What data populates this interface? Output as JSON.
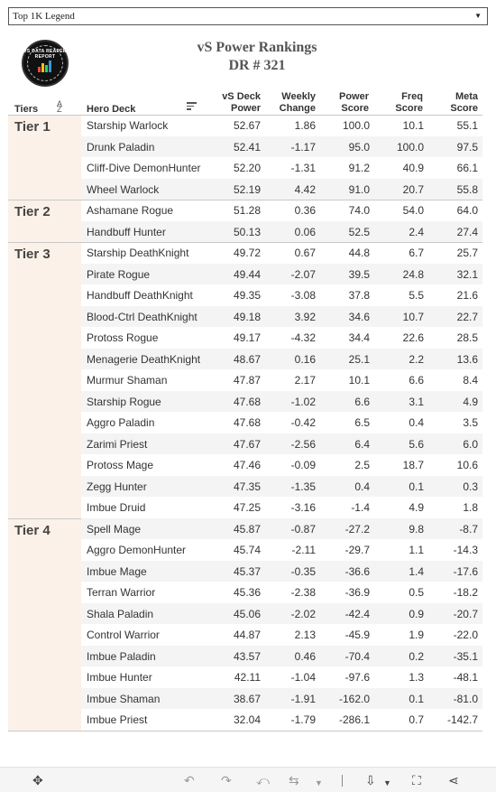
{
  "dropdown": {
    "value": "Top 1K Legend"
  },
  "logo": {
    "text": "VS DATA REAPER REPORT"
  },
  "title": {
    "line1": "vS  Power  Rankings",
    "line2": "DR  #  321"
  },
  "headers": {
    "tiers": "Tiers",
    "hero_deck": "Hero Deck",
    "power": [
      "vS Deck",
      "Power"
    ],
    "change": [
      "Weekly",
      "Change"
    ],
    "score": [
      "Power",
      "Score"
    ],
    "freq": [
      "Freq",
      "Score"
    ],
    "meta": [
      "Meta",
      "Score"
    ]
  },
  "tiers": [
    {
      "label": "Tier 1",
      "start": 0,
      "count": 4
    },
    {
      "label": "Tier 2",
      "start": 4,
      "count": 2
    },
    {
      "label": "Tier 3",
      "start": 6,
      "count": 13
    },
    {
      "label": "Tier 4",
      "start": 19,
      "count": 10
    }
  ],
  "rows": [
    {
      "hero": "Starship Warlock",
      "power": "52.67",
      "change": "1.86",
      "score": "100.0",
      "freq": "10.1",
      "meta": "55.1"
    },
    {
      "hero": "Drunk Paladin",
      "power": "52.41",
      "change": "-1.17",
      "score": "95.0",
      "freq": "100.0",
      "meta": "97.5"
    },
    {
      "hero": "Cliff-Dive DemonHunter",
      "power": "52.20",
      "change": "-1.31",
      "score": "91.2",
      "freq": "40.9",
      "meta": "66.1"
    },
    {
      "hero": "Wheel Warlock",
      "power": "52.19",
      "change": "4.42",
      "score": "91.0",
      "freq": "20.7",
      "meta": "55.8"
    },
    {
      "hero": "Ashamane Rogue",
      "power": "51.28",
      "change": "0.36",
      "score": "74.0",
      "freq": "54.0",
      "meta": "64.0"
    },
    {
      "hero": "Handbuff Hunter",
      "power": "50.13",
      "change": "0.06",
      "score": "52.5",
      "freq": "2.4",
      "meta": "27.4"
    },
    {
      "hero": "Starship DeathKnight",
      "power": "49.72",
      "change": "0.67",
      "score": "44.8",
      "freq": "6.7",
      "meta": "25.7"
    },
    {
      "hero": "Pirate Rogue",
      "power": "49.44",
      "change": "-2.07",
      "score": "39.5",
      "freq": "24.8",
      "meta": "32.1"
    },
    {
      "hero": "Handbuff DeathKnight",
      "power": "49.35",
      "change": "-3.08",
      "score": "37.8",
      "freq": "5.5",
      "meta": "21.6"
    },
    {
      "hero": "Blood-Ctrl DeathKnight",
      "power": "49.18",
      "change": "3.92",
      "score": "34.6",
      "freq": "10.7",
      "meta": "22.7"
    },
    {
      "hero": "Protoss Rogue",
      "power": "49.17",
      "change": "-4.32",
      "score": "34.4",
      "freq": "22.6",
      "meta": "28.5"
    },
    {
      "hero": "Menagerie DeathKnight",
      "power": "48.67",
      "change": "0.16",
      "score": "25.1",
      "freq": "2.2",
      "meta": "13.6"
    },
    {
      "hero": "Murmur Shaman",
      "power": "47.87",
      "change": "2.17",
      "score": "10.1",
      "freq": "6.6",
      "meta": "8.4"
    },
    {
      "hero": "Starship Rogue",
      "power": "47.68",
      "change": "-1.02",
      "score": "6.6",
      "freq": "3.1",
      "meta": "4.9"
    },
    {
      "hero": "Aggro Paladin",
      "power": "47.68",
      "change": "-0.42",
      "score": "6.5",
      "freq": "0.4",
      "meta": "3.5"
    },
    {
      "hero": "Zarimi Priest",
      "power": "47.67",
      "change": "-2.56",
      "score": "6.4",
      "freq": "5.6",
      "meta": "6.0"
    },
    {
      "hero": "Protoss Mage",
      "power": "47.46",
      "change": "-0.09",
      "score": "2.5",
      "freq": "18.7",
      "meta": "10.6"
    },
    {
      "hero": "Zegg Hunter",
      "power": "47.35",
      "change": "-1.35",
      "score": "0.4",
      "freq": "0.1",
      "meta": "0.3"
    },
    {
      "hero": "Imbue Druid",
      "power": "47.25",
      "change": "-3.16",
      "score": "-1.4",
      "freq": "4.9",
      "meta": "1.8"
    },
    {
      "hero": "Spell Mage",
      "power": "45.87",
      "change": "-0.87",
      "score": "-27.2",
      "freq": "9.8",
      "meta": "-8.7"
    },
    {
      "hero": "Aggro DemonHunter",
      "power": "45.74",
      "change": "-2.11",
      "score": "-29.7",
      "freq": "1.1",
      "meta": "-14.3"
    },
    {
      "hero": "Imbue Mage",
      "power": "45.37",
      "change": "-0.35",
      "score": "-36.6",
      "freq": "1.4",
      "meta": "-17.6"
    },
    {
      "hero": "Terran Warrior",
      "power": "45.36",
      "change": "-2.38",
      "score": "-36.9",
      "freq": "0.5",
      "meta": "-18.2"
    },
    {
      "hero": "Shala Paladin",
      "power": "45.06",
      "change": "-2.02",
      "score": "-42.4",
      "freq": "0.9",
      "meta": "-20.7"
    },
    {
      "hero": "Control Warrior",
      "power": "44.87",
      "change": "2.13",
      "score": "-45.9",
      "freq": "1.9",
      "meta": "-22.0"
    },
    {
      "hero": "Imbue Paladin",
      "power": "43.57",
      "change": "0.46",
      "score": "-70.4",
      "freq": "0.2",
      "meta": "-35.1"
    },
    {
      "hero": "Imbue Hunter",
      "power": "42.11",
      "change": "-1.04",
      "score": "-97.6",
      "freq": "1.3",
      "meta": "-48.1"
    },
    {
      "hero": "Imbue Shaman",
      "power": "38.67",
      "change": "-1.91",
      "score": "-162.0",
      "freq": "0.1",
      "meta": "-81.0"
    },
    {
      "hero": "Imbue Priest",
      "power": "32.04",
      "change": "-1.79",
      "score": "-286.1",
      "freq": "0.7",
      "meta": "-142.7"
    }
  ],
  "colors": {
    "tier_bg": "#fbf1e8",
    "row_alt": "#f4f4f4"
  }
}
